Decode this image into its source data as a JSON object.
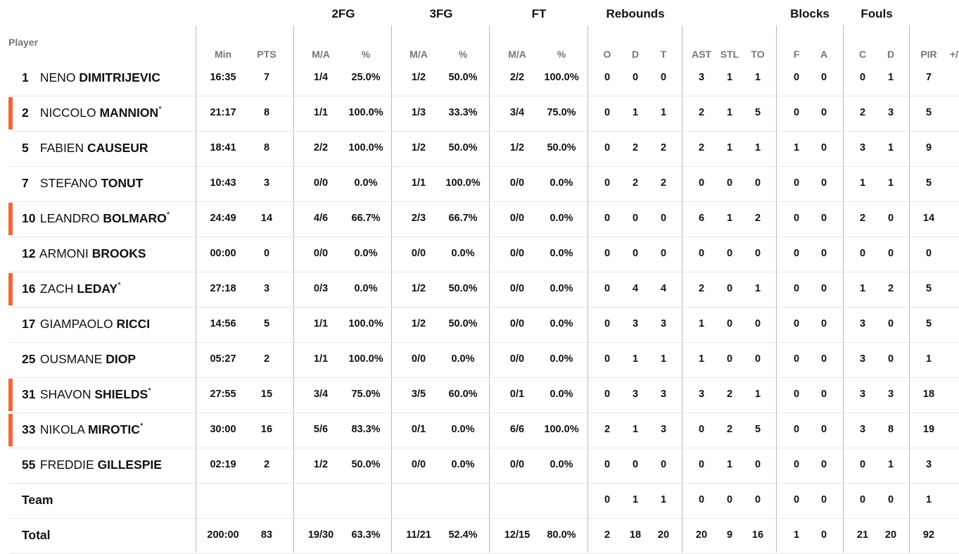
{
  "groups": {
    "fg2": "2FG",
    "fg3": "3FG",
    "ft": "FT",
    "reb": "Rebounds",
    "blk": "Blocks",
    "fouls": "Fouls"
  },
  "player_header": "Player",
  "columns": {
    "min": "Min",
    "pts": "PTS",
    "fg2_ma": "M/A",
    "fg2_pct": "%",
    "fg3_ma": "M/A",
    "fg3_pct": "%",
    "ft_ma": "M/A",
    "ft_pct": "%",
    "o": "O",
    "d": "D",
    "t": "T",
    "ast": "AST",
    "stl": "STL",
    "to": "TO",
    "bf": "F",
    "ba": "A",
    "fc": "C",
    "fd": "D",
    "pir": "PIR",
    "pm": "+/"
  },
  "rows": [
    {
      "number": "1",
      "first": "NENO",
      "last": "DIMITRIJEVIC",
      "starter": false,
      "star": "",
      "min": "16:35",
      "pts": "7",
      "fg2_ma": "1/4",
      "fg2_pct": "25.0%",
      "fg3_ma": "1/2",
      "fg3_pct": "50.0%",
      "ft_ma": "2/2",
      "ft_pct": "100.0%",
      "o": "0",
      "d": "0",
      "t": "0",
      "ast": "3",
      "stl": "1",
      "to": "1",
      "bf": "0",
      "ba": "0",
      "fc": "0",
      "fd": "1",
      "pir": "7"
    },
    {
      "number": "2",
      "first": "NICCOLO",
      "last": "MANNION",
      "starter": true,
      "star": "*",
      "min": "21:17",
      "pts": "8",
      "fg2_ma": "1/1",
      "fg2_pct": "100.0%",
      "fg3_ma": "1/3",
      "fg3_pct": "33.3%",
      "ft_ma": "3/4",
      "ft_pct": "75.0%",
      "o": "0",
      "d": "1",
      "t": "1",
      "ast": "2",
      "stl": "1",
      "to": "5",
      "bf": "0",
      "ba": "0",
      "fc": "2",
      "fd": "3",
      "pir": "5"
    },
    {
      "number": "5",
      "first": "FABIEN",
      "last": "CAUSEUR",
      "starter": false,
      "star": "",
      "min": "18:41",
      "pts": "8",
      "fg2_ma": "2/2",
      "fg2_pct": "100.0%",
      "fg3_ma": "1/2",
      "fg3_pct": "50.0%",
      "ft_ma": "1/2",
      "ft_pct": "50.0%",
      "o": "0",
      "d": "2",
      "t": "2",
      "ast": "2",
      "stl": "1",
      "to": "1",
      "bf": "1",
      "ba": "0",
      "fc": "3",
      "fd": "1",
      "pir": "9"
    },
    {
      "number": "7",
      "first": "STEFANO",
      "last": "TONUT",
      "starter": false,
      "star": "",
      "min": "10:43",
      "pts": "3",
      "fg2_ma": "0/0",
      "fg2_pct": "0.0%",
      "fg3_ma": "1/1",
      "fg3_pct": "100.0%",
      "ft_ma": "0/0",
      "ft_pct": "0.0%",
      "o": "0",
      "d": "2",
      "t": "2",
      "ast": "0",
      "stl": "0",
      "to": "0",
      "bf": "0",
      "ba": "0",
      "fc": "1",
      "fd": "1",
      "pir": "5"
    },
    {
      "number": "10",
      "first": "LEANDRO",
      "last": "BOLMARO",
      "starter": true,
      "star": "*",
      "min": "24:49",
      "pts": "14",
      "fg2_ma": "4/6",
      "fg2_pct": "66.7%",
      "fg3_ma": "2/3",
      "fg3_pct": "66.7%",
      "ft_ma": "0/0",
      "ft_pct": "0.0%",
      "o": "0",
      "d": "0",
      "t": "0",
      "ast": "6",
      "stl": "1",
      "to": "2",
      "bf": "0",
      "ba": "0",
      "fc": "2",
      "fd": "0",
      "pir": "14"
    },
    {
      "number": "12",
      "first": "ARMONI",
      "last": "BROOKS",
      "starter": false,
      "star": "",
      "min": "00:00",
      "pts": "0",
      "fg2_ma": "0/0",
      "fg2_pct": "0.0%",
      "fg3_ma": "0/0",
      "fg3_pct": "0.0%",
      "ft_ma": "0/0",
      "ft_pct": "0.0%",
      "o": "0",
      "d": "0",
      "t": "0",
      "ast": "0",
      "stl": "0",
      "to": "0",
      "bf": "0",
      "ba": "0",
      "fc": "0",
      "fd": "0",
      "pir": "0"
    },
    {
      "number": "16",
      "first": "ZACH",
      "last": "LEDAY",
      "starter": true,
      "star": "*",
      "min": "27:18",
      "pts": "3",
      "fg2_ma": "0/3",
      "fg2_pct": "0.0%",
      "fg3_ma": "1/2",
      "fg3_pct": "50.0%",
      "ft_ma": "0/0",
      "ft_pct": "0.0%",
      "o": "0",
      "d": "4",
      "t": "4",
      "ast": "2",
      "stl": "0",
      "to": "1",
      "bf": "0",
      "ba": "0",
      "fc": "1",
      "fd": "2",
      "pir": "5"
    },
    {
      "number": "17",
      "first": "GIAMPAOLO",
      "last": "RICCI",
      "starter": false,
      "star": "",
      "min": "14:56",
      "pts": "5",
      "fg2_ma": "1/1",
      "fg2_pct": "100.0%",
      "fg3_ma": "1/2",
      "fg3_pct": "50.0%",
      "ft_ma": "0/0",
      "ft_pct": "0.0%",
      "o": "0",
      "d": "3",
      "t": "3",
      "ast": "1",
      "stl": "0",
      "to": "0",
      "bf": "0",
      "ba": "0",
      "fc": "3",
      "fd": "0",
      "pir": "5"
    },
    {
      "number": "25",
      "first": "OUSMANE",
      "last": "DIOP",
      "starter": false,
      "star": "",
      "min": "05:27",
      "pts": "2",
      "fg2_ma": "1/1",
      "fg2_pct": "100.0%",
      "fg3_ma": "0/0",
      "fg3_pct": "0.0%",
      "ft_ma": "0/0",
      "ft_pct": "0.0%",
      "o": "0",
      "d": "1",
      "t": "1",
      "ast": "1",
      "stl": "0",
      "to": "0",
      "bf": "0",
      "ba": "0",
      "fc": "3",
      "fd": "0",
      "pir": "1"
    },
    {
      "number": "31",
      "first": "SHAVON",
      "last": "SHIELDS",
      "starter": true,
      "star": "*",
      "min": "27:55",
      "pts": "15",
      "fg2_ma": "3/4",
      "fg2_pct": "75.0%",
      "fg3_ma": "3/5",
      "fg3_pct": "60.0%",
      "ft_ma": "0/1",
      "ft_pct": "0.0%",
      "o": "0",
      "d": "3",
      "t": "3",
      "ast": "3",
      "stl": "2",
      "to": "1",
      "bf": "0",
      "ba": "0",
      "fc": "3",
      "fd": "3",
      "pir": "18"
    },
    {
      "number": "33",
      "first": "NIKOLA",
      "last": "MIROTIC",
      "starter": true,
      "star": "*",
      "min": "30:00",
      "pts": "16",
      "fg2_ma": "5/6",
      "fg2_pct": "83.3%",
      "fg3_ma": "0/1",
      "fg3_pct": "0.0%",
      "ft_ma": "6/6",
      "ft_pct": "100.0%",
      "o": "2",
      "d": "1",
      "t": "3",
      "ast": "0",
      "stl": "2",
      "to": "5",
      "bf": "0",
      "ba": "0",
      "fc": "3",
      "fd": "8",
      "pir": "19"
    },
    {
      "number": "55",
      "first": "FREDDIE",
      "last": "GILLESPIE",
      "starter": false,
      "star": "",
      "min": "02:19",
      "pts": "2",
      "fg2_ma": "1/2",
      "fg2_pct": "50.0%",
      "fg3_ma": "0/0",
      "fg3_pct": "0.0%",
      "ft_ma": "0/0",
      "ft_pct": "0.0%",
      "o": "0",
      "d": "0",
      "t": "0",
      "ast": "0",
      "stl": "1",
      "to": "0",
      "bf": "0",
      "ba": "0",
      "fc": "0",
      "fd": "1",
      "pir": "3"
    }
  ],
  "team": {
    "label": "Team",
    "min": "",
    "pts": "",
    "fg2_ma": "",
    "fg2_pct": "",
    "fg3_ma": "",
    "fg3_pct": "",
    "ft_ma": "",
    "ft_pct": "",
    "o": "0",
    "d": "1",
    "t": "1",
    "ast": "0",
    "stl": "0",
    "to": "0",
    "bf": "0",
    "ba": "0",
    "fc": "0",
    "fd": "0",
    "pir": "1"
  },
  "total": {
    "label": "Total",
    "min": "200:00",
    "pts": "83",
    "fg2_ma": "19/30",
    "fg2_pct": "63.3%",
    "fg3_ma": "11/21",
    "fg3_pct": "52.4%",
    "ft_ma": "12/15",
    "ft_pct": "80.0%",
    "o": "2",
    "d": "18",
    "t": "20",
    "ast": "20",
    "stl": "9",
    "to": "16",
    "bf": "1",
    "ba": "0",
    "fc": "21",
    "fd": "20",
    "pir": "92"
  },
  "colors": {
    "starter_marker": "#f2663a",
    "header_text": "#777777",
    "divider": "#b9b9b9"
  }
}
